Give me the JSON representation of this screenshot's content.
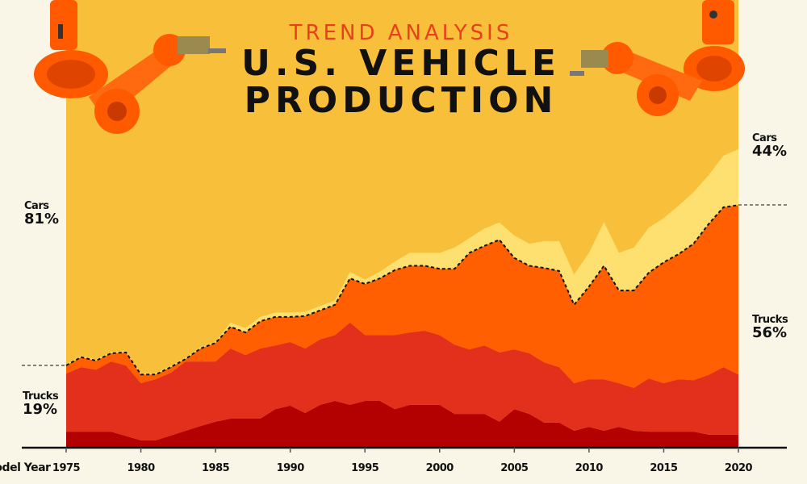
{
  "header": {
    "kicker": "TREND ANALYSIS",
    "title_line1": "U.S. VEHICLE",
    "title_line2": "PRODUCTION"
  },
  "annotations": {
    "start_cars_label": "Cars",
    "start_cars_pct": "81%",
    "start_trucks_label": "Trucks",
    "start_trucks_pct": "19%",
    "end_cars_label": "Cars",
    "end_cars_pct": "44%",
    "end_trucks_label": "Trucks",
    "end_trucks_pct": "56%"
  },
  "chart_data": {
    "type": "area",
    "stacked": true,
    "normalized_to": 100,
    "xlabel": "Model Year",
    "ylabel": "",
    "xlim": [
      1975,
      2020
    ],
    "ylim": [
      0,
      100
    ],
    "x_ticks": [
      1975,
      1980,
      1985,
      1990,
      1995,
      2000,
      2005,
      2010,
      2015,
      2020
    ],
    "grid": false,
    "legend": "none",
    "x": [
      1975,
      1976,
      1977,
      1978,
      1979,
      1980,
      1981,
      1982,
      1983,
      1984,
      1985,
      1986,
      1987,
      1988,
      1989,
      1990,
      1991,
      1992,
      1993,
      1994,
      1995,
      1996,
      1997,
      1998,
      1999,
      2000,
      2001,
      2002,
      2003,
      2004,
      2005,
      2006,
      2007,
      2008,
      2009,
      2010,
      2011,
      2012,
      2013,
      2014,
      2015,
      2016,
      2017,
      2018,
      2019,
      2020
    ],
    "series": [
      {
        "group": "Trucks",
        "color": "#b30000",
        "values": [
          3.7,
          3.7,
          3.7,
          3.7,
          2.7,
          1.7,
          1.7,
          2.8,
          3.9,
          5,
          6,
          6.7,
          6.7,
          6.7,
          8.9,
          9.7,
          8,
          9.9,
          10.8,
          9.9,
          10.8,
          10.8,
          8.9,
          9.9,
          9.9,
          9.9,
          7.8,
          7.8,
          7.8,
          6,
          8.9,
          7.8,
          5.8,
          5.8,
          3.9,
          4.8,
          3.9,
          4.8,
          3.9,
          3.7,
          3.7,
          3.7,
          3.7,
          3,
          3,
          3
        ]
      },
      {
        "group": "Trucks",
        "color": "#e2301c",
        "values": [
          13.4,
          14.9,
          14.3,
          16.2,
          16.3,
          13.2,
          14.1,
          14.5,
          16,
          14.9,
          13.9,
          16.2,
          14.7,
          16.2,
          14.7,
          14.7,
          14.9,
          15.1,
          15.2,
          19,
          15.2,
          15.2,
          17.1,
          16.7,
          17.1,
          16.1,
          16,
          14.9,
          15.8,
          16,
          13.8,
          14,
          13.9,
          12.8,
          11,
          11,
          11.9,
          10.1,
          9.9,
          12.3,
          11.2,
          12.1,
          11.9,
          13.8,
          15.6,
          13.9
        ]
      },
      {
        "group": "Trucks",
        "color": "#ff5f00",
        "values": [
          1.9,
          2.3,
          2.1,
          1.9,
          3,
          2,
          1.1,
          1.3,
          0.6,
          3,
          4.3,
          5,
          5.2,
          6.3,
          6.6,
          5.8,
          7.5,
          6.7,
          7,
          10.2,
          11.8,
          13.1,
          15,
          15.4,
          15,
          15.3,
          17.5,
          22.3,
          23,
          26,
          21.1,
          20.2,
          21.8,
          22.2,
          18.1,
          21.4,
          26.2,
          21.4,
          22.5,
          24.4,
          27.9,
          28.9,
          31.5,
          34.8,
          36.9,
          39.1
        ]
      },
      {
        "group": "Cars",
        "color": "#fde070",
        "values": [
          0.3,
          0.3,
          0.3,
          0.3,
          0.3,
          0.3,
          0.3,
          0.3,
          0.3,
          0.3,
          0.3,
          1,
          1,
          1,
          1,
          1,
          1,
          1,
          1,
          1.5,
          1,
          1.5,
          2,
          3,
          3,
          3.7,
          4.9,
          3.4,
          4,
          4,
          5.2,
          5.1,
          6.2,
          6.9,
          7,
          7.8,
          10.1,
          8.7,
          9.9,
          10.4,
          10.2,
          11.2,
          11.9,
          11.3,
          11.9,
          12.9
        ]
      },
      {
        "group": "Cars",
        "color": "#f8bf3a",
        "values": "remainder to 100%"
      }
    ],
    "trucks_share_start_pct": 19,
    "trucks_share_end_pct": 56,
    "cars_share_start_pct": 81,
    "cars_share_end_pct": 44
  },
  "colors": {
    "background": "#f9f5e7",
    "accent": "#e8401c",
    "robot_arm": "#ff5a00"
  },
  "icons": [
    "robot-arm-left",
    "robot-arm-right"
  ]
}
